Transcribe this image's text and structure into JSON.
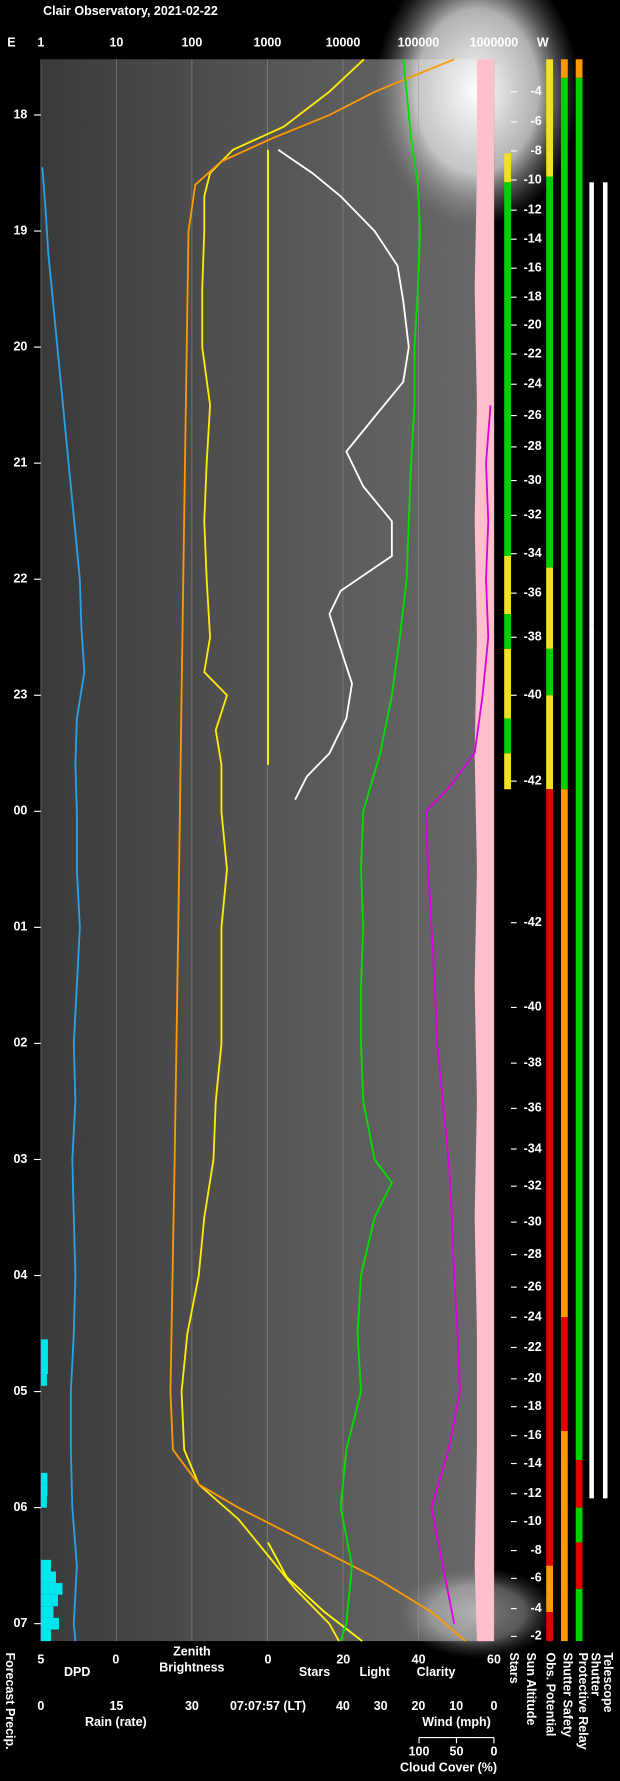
{
  "chart_data": {
    "type": "line",
    "title": "Clair Observatory, 2021-02-22",
    "time_axis": {
      "ylim": [
        17.52,
        31.15
      ],
      "yticks": [
        18,
        19,
        20,
        21,
        22,
        23,
        {
          "value": 24,
          "label": "00"
        },
        {
          "value": 25,
          "label": "01"
        },
        {
          "value": 26,
          "label": "02"
        },
        {
          "value": 27,
          "label": "03"
        },
        {
          "value": 28,
          "label": "04"
        },
        {
          "value": 29,
          "label": "05"
        },
        {
          "value": 30,
          "label": "06"
        },
        {
          "value": 31,
          "label": "07"
        }
      ]
    },
    "top_axis": {
      "left_label": "E",
      "right_label": "W",
      "log": true,
      "grid": true,
      "xlim": [
        1,
        1000000
      ],
      "xticks": [
        1,
        10,
        100,
        1000,
        10000,
        100000,
        1000000
      ],
      "label": [
        "Zenith",
        "Brightness"
      ],
      "label_color": "#ffee00",
      "series": [
        {
          "color": "#ffee00",
          "x": [
            17.52,
            17.8,
            18.1,
            18.3,
            18.5,
            18.7,
            19,
            19.5,
            20,
            20.5,
            21,
            21.5,
            22,
            22.5,
            22.8,
            23,
            23.3,
            23.6,
            24,
            24.5,
            25,
            25.5,
            26,
            26.5,
            27,
            27.5,
            28,
            28.5,
            29,
            29.5,
            29.8,
            30.1,
            30.4,
            30.7,
            31,
            31.15
          ],
          "values": [
            19000,
            6600,
            1650,
            350,
            174,
            146,
            146,
            137,
            137,
            174,
            157,
            146,
            157,
            174,
            146,
            292,
            207,
            246,
            246,
            292,
            246,
            246,
            246,
            207,
            193,
            146,
            123,
            87,
            73,
            79,
            123,
            414,
            983,
            2335,
            6600,
            8850
          ]
        },
        {
          "color": "#ff9900",
          "x": [
            17.52,
            17.8,
            18.0,
            18.2,
            18.4,
            18.6,
            19,
            21,
            23,
            25,
            27,
            29,
            29.5,
            29.8,
            30.0,
            30.3,
            30.6,
            30.9,
            31.15
          ],
          "values": [
            298000,
            26400,
            6600,
            1170,
            246,
            111,
            90,
            81,
            73,
            66,
            59,
            52,
            56,
            123,
            414,
            3300,
            26400,
            149000,
            420000
          ]
        }
      ]
    },
    "bottom_axes": [
      {
        "lim": [
          5,
          0
        ],
        "ticks": [
          5,
          0
        ],
        "series": [
          {
            "name": "DPD",
            "color": "#2aa0e6",
            "x": [
              18.45,
              18.8,
              19.2,
              19.6,
              20,
              20.4,
              20.8,
              21.2,
              21.6,
              22,
              22.4,
              22.8,
              23.2,
              23.6,
              24,
              24.5,
              25,
              25.5,
              26,
              26.5,
              27,
              27.5,
              28,
              28.5,
              29,
              29.5,
              30,
              30.5,
              31,
              31.15
            ],
            "values": [
              4.9,
              4.7,
              4.5,
              4.2,
              3.9,
              3.6,
              3.3,
              3.0,
              2.7,
              2.4,
              2.3,
              2.1,
              2.6,
              2.7,
              2.6,
              2.6,
              2.4,
              2.6,
              2.8,
              2.7,
              2.9,
              2.8,
              2.7,
              2.8,
              3.0,
              3.0,
              2.9,
              2.6,
              2.8,
              2.7
            ]
          }
        ]
      },
      {
        "lim": [
          0,
          60
        ],
        "ticks": [
          0,
          20,
          40,
          60
        ],
        "series": [
          {
            "name": "Stars",
            "color": "#ffffff",
            "x": [
              18.3,
              18.5,
              18.7,
              19,
              19.3,
              19.6,
              20,
              20.3,
              20.6,
              20.9,
              21.2,
              21.5,
              21.8,
              22.1,
              22.3,
              22.6,
              22.9,
              23.2,
              23.5,
              23.7,
              23.9
            ],
            "values": [
              2.7,
              11.8,
              19.3,
              28.3,
              34.4,
              35.9,
              37.4,
              35.9,
              28.3,
              20.8,
              25.3,
              32.9,
              32.9,
              19.3,
              16.3,
              19.3,
              22.3,
              20.8,
              16.3,
              10.3,
              7.2
            ]
          },
          {
            "name": "Light",
            "color": "#ffff00",
            "x": [
              18.3,
              19,
              20,
              21,
              22,
              23,
              23.6,
              23.8,
              30.3,
              30.6,
              30.9,
              31.15
            ],
            "values": [
              0,
              0,
              0,
              0,
              0,
              0,
              0,
              null,
              0,
              5,
              15,
              25
            ]
          },
          {
            "name": "Clarity",
            "color": "#00e000",
            "x": [
              17.52,
              17.8,
              18.2,
              18.6,
              19,
              19.5,
              20,
              20.5,
              21,
              21.5,
              22,
              22.5,
              23,
              23.5,
              24,
              24.5,
              25,
              25.5,
              26,
              26.5,
              27,
              27.2,
              27.5,
              28,
              28.5,
              29,
              29.5,
              30,
              30.5,
              31,
              31.15
            ],
            "values": [
              35.9,
              36.8,
              38.0,
              39.8,
              40.4,
              39.8,
              38.9,
              38.9,
              38.0,
              37.4,
              36.8,
              35.0,
              32.9,
              29.8,
              25.3,
              24.7,
              25.3,
              24.7,
              24.7,
              25.3,
              28.3,
              32.9,
              28.3,
              24.7,
              23.8,
              24.7,
              20.8,
              19.3,
              22.3,
              20.8,
              19.3
            ]
          }
        ]
      },
      {
        "lim": [
          0,
          30
        ],
        "ticks": [
          0,
          15,
          30
        ],
        "series": [
          {
            "name": "Rain (rate)",
            "color": "#00e5ee",
            "type": "bar",
            "x": [
              28.55,
              28.65,
              28.75,
              28.85,
              29.7,
              29.8,
              29.9,
              30.45,
              30.55,
              30.65,
              30.75,
              30.85,
              30.95,
              31.05
            ],
            "values": [
              1.4,
              1.4,
              1.4,
              1.2,
              1.3,
              1.3,
              1.2,
              2.0,
              3.0,
              4.3,
              3.4,
              2.5,
              3.6,
              2.0
            ]
          }
        ]
      },
      {
        "lim": [
          40,
          0
        ],
        "ticks": [
          40,
          30,
          20,
          10,
          0
        ],
        "series": [
          {
            "name": "Wind (mph)",
            "color": "#ffc0cb",
            "type": "area",
            "x": [
              17.52,
              18.5,
              19.5,
              20.5,
              21.5,
              22.5,
              23.5,
              24.5,
              25.5,
              26.5,
              27.5,
              28.5,
              29.5,
              30.5,
              31.15
            ],
            "values": [
              4.5,
              4.5,
              5.1,
              4.5,
              5.1,
              4.5,
              5.1,
              4.5,
              5.1,
              4.5,
              5.1,
              4.5,
              4.5,
              5.1,
              4.5
            ]
          }
        ]
      },
      {
        "lim": [
          100,
          0
        ],
        "ticks": [
          100,
          50,
          0
        ],
        "series": [
          {
            "name": "Cloud Cover (%)",
            "color": "#e000e0",
            "x": [
              20.5,
              21,
              21.5,
              22,
              22.5,
              23,
              23.5,
              23.8,
              24,
              24.5,
              25,
              25.5,
              26,
              26.5,
              27,
              27.5,
              28,
              28.5,
              29,
              29.5,
              30,
              30.5,
              31
            ],
            "values": [
              4.5,
              10.6,
              7.6,
              10.6,
              7.6,
              15.2,
              25.8,
              60.6,
              90.9,
              87.9,
              83.3,
              78.8,
              75.8,
              68.2,
              60.6,
              56.1,
              53.0,
              48.5,
              45.5,
              60.6,
              83.3,
              68.2,
              53.0
            ]
          }
        ]
      }
    ],
    "time_label": "07:07:57 (LT)",
    "forecast_label": "Forecast Precip.",
    "sun_altitude": {
      "label": "Sun Altitude",
      "x": [
        17.8,
        18.06,
        18.31,
        18.56,
        18.82,
        19.07,
        19.32,
        19.57,
        19.81,
        20.06,
        20.32,
        20.59,
        20.86,
        21.15,
        21.45,
        21.78,
        22.12,
        22.5,
        23.0,
        23.74,
        24.96,
        25.69,
        26.17,
        26.56,
        26.91,
        27.23,
        27.54,
        27.82,
        28.1,
        28.36,
        28.62,
        28.89,
        29.13,
        29.38,
        29.62,
        29.88,
        30.12,
        30.37,
        30.61,
        30.87,
        31.11
      ],
      "values": [
        -4,
        -6,
        -8,
        -10,
        -12,
        -14,
        -16,
        -18,
        -20,
        -22,
        -24,
        -26,
        -28,
        -30,
        -32,
        -34,
        -36,
        -38,
        -40,
        -42,
        -42,
        -40,
        -38,
        -36,
        -34,
        -32,
        -30,
        -28,
        -26,
        -24,
        -22,
        -20,
        -18,
        -16,
        -14,
        -12,
        -10,
        -8,
        -6,
        -4,
        -2
      ]
    },
    "status_bars": [
      {
        "label": "Stars",
        "segments": [
          {
            "start": 18.33,
            "end": 18.58,
            "color": "#f0e020"
          },
          {
            "start": 18.58,
            "end": 21.8,
            "color": "#00d000"
          },
          {
            "start": 21.8,
            "end": 22.3,
            "color": "#f0e020"
          },
          {
            "start": 22.3,
            "end": 22.6,
            "color": "#00d000"
          },
          {
            "start": 22.6,
            "end": 23.2,
            "color": "#f0e020"
          },
          {
            "start": 23.2,
            "end": 23.5,
            "color": "#00d000"
          },
          {
            "start": 23.5,
            "end": 23.81,
            "color": "#f0e020"
          }
        ]
      },
      {
        "label": "Obs. Potential",
        "segments": [
          {
            "start": 17.52,
            "end": 18.53,
            "color": "#f0e020"
          },
          {
            "start": 18.53,
            "end": 21.9,
            "color": "#00d000"
          },
          {
            "start": 21.9,
            "end": 22.6,
            "color": "#f0e020"
          },
          {
            "start": 22.6,
            "end": 23.0,
            "color": "#00d000"
          },
          {
            "start": 23.0,
            "end": 23.81,
            "color": "#f0e020"
          },
          {
            "start": 23.81,
            "end": 30.5,
            "color": "#e00000"
          },
          {
            "start": 30.5,
            "end": 30.9,
            "color": "#ff9900"
          },
          {
            "start": 30.9,
            "end": 31.15,
            "color": "#e00000"
          }
        ]
      },
      {
        "label": "Shutter Safety",
        "segments": [
          {
            "start": 17.52,
            "end": 17.68,
            "color": "#ff9900"
          },
          {
            "start": 17.68,
            "end": 23.81,
            "color": "#00d000"
          },
          {
            "start": 23.81,
            "end": 28.36,
            "color": "#ff9900"
          },
          {
            "start": 28.36,
            "end": 29.34,
            "color": "#e00000"
          },
          {
            "start": 29.34,
            "end": 31.15,
            "color": "#ff9900"
          }
        ]
      },
      {
        "label": "Protective Relay",
        "segments": [
          {
            "start": 17.52,
            "end": 17.68,
            "color": "#ff9900"
          },
          {
            "start": 17.68,
            "end": 29.59,
            "color": "#00d000"
          },
          {
            "start": 29.59,
            "end": 30.0,
            "color": "#e00000"
          },
          {
            "start": 30.0,
            "end": 30.3,
            "color": "#00d000"
          },
          {
            "start": 30.3,
            "end": 30.7,
            "color": "#e00000"
          },
          {
            "start": 30.7,
            "end": 31.15,
            "color": "#00d000"
          }
        ]
      },
      {
        "label": "Shutter",
        "segments": [
          {
            "start": 18.58,
            "end": 22.4,
            "color": "#ffffff"
          },
          {
            "start": 22.4,
            "end": 29.92,
            "color": "#ffffff"
          }
        ]
      },
      {
        "label": "Telescope",
        "segments": [
          {
            "start": 18.58,
            "end": 29.92,
            "color": "#ffffff"
          }
        ]
      }
    ]
  }
}
